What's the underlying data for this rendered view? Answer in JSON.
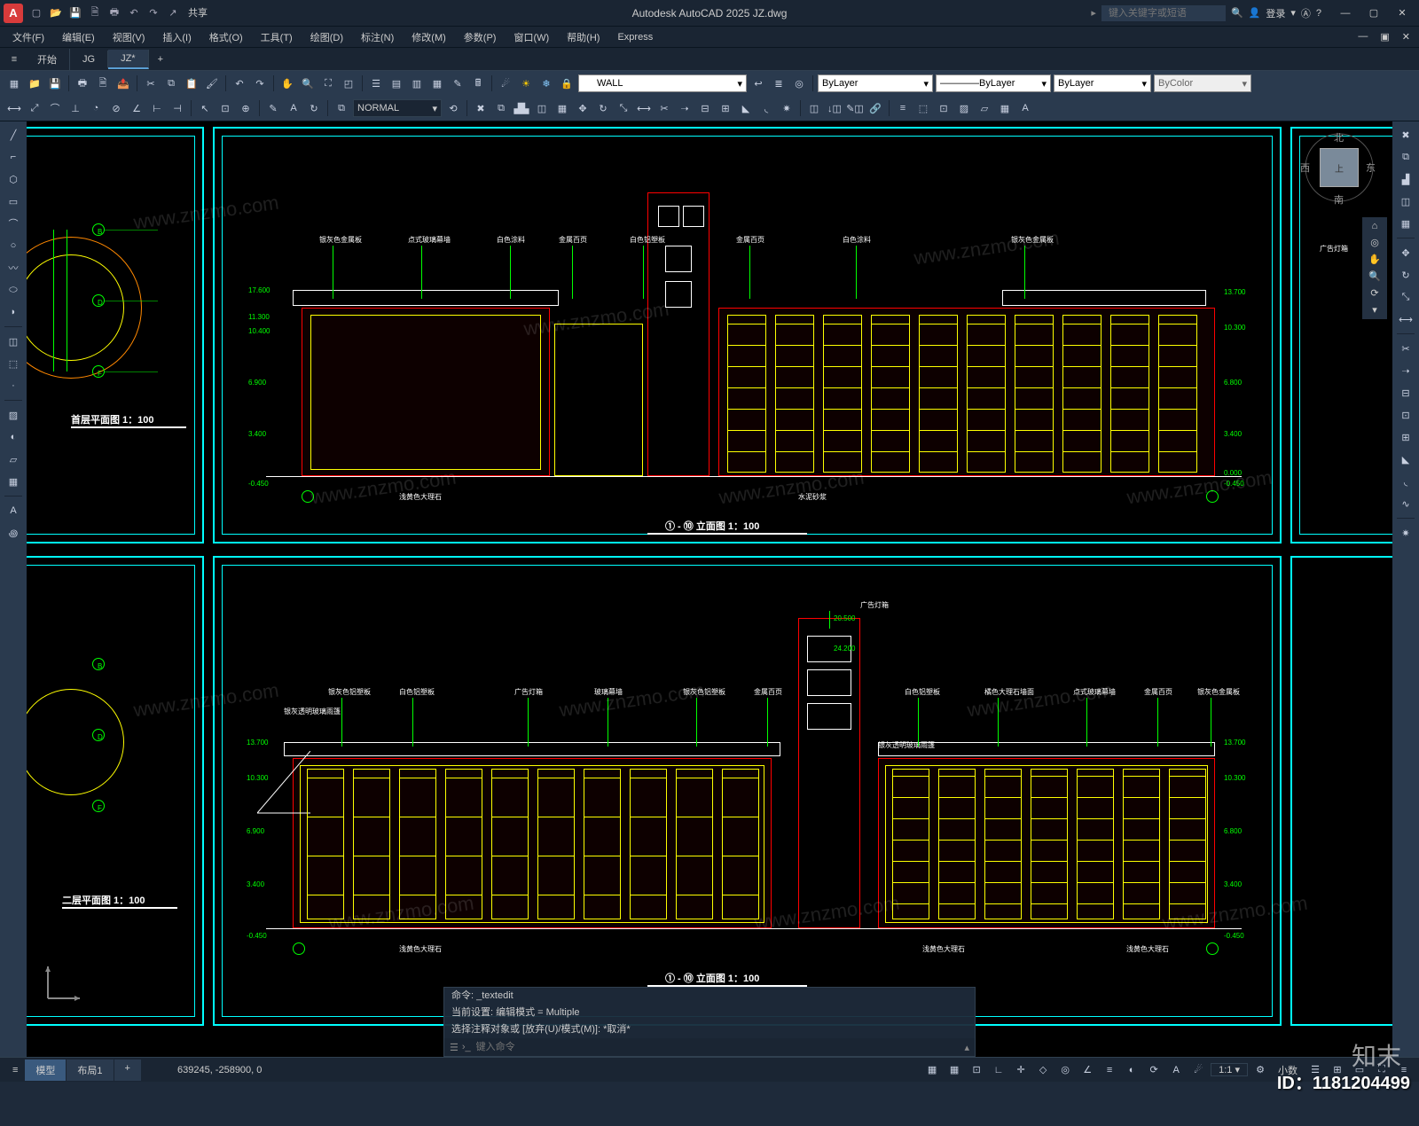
{
  "app": {
    "title": "Autodesk AutoCAD 2025   JZ.dwg",
    "logo_letter": "A",
    "share": "共享",
    "search_placeholder": "键入关键字或短语",
    "login": "登录"
  },
  "menus": [
    "文件(F)",
    "编辑(E)",
    "视图(V)",
    "插入(I)",
    "格式(O)",
    "工具(T)",
    "绘图(D)",
    "标注(N)",
    "修改(M)",
    "参数(P)",
    "窗口(W)",
    "帮助(H)",
    "Express"
  ],
  "doc_tabs": {
    "items": [
      "开始",
      "JG",
      "JZ*"
    ],
    "active": 2
  },
  "ribbon": {
    "layer_combo": "WALL",
    "style_combo": "NORMAL",
    "bylayer1": "ByLayer",
    "bylayer2": "ByLayer",
    "bylayer3": "ByLayer",
    "bycolor": "ByColor"
  },
  "viewcube": {
    "n": "北",
    "s": "南",
    "e": "东",
    "w": "西",
    "top": "上"
  },
  "drawing": {
    "colors": {
      "frame": "#00ffff",
      "dim": "#00ff00",
      "yellow": "#ffff00",
      "red": "#ff0000",
      "white": "#ffffff",
      "mag": "#ff00ff"
    },
    "sheet1_title": "首层平面图 1：100",
    "sheet2_title": "二层平面图 1：100",
    "elev1_title": "① - ⑩ 立面图 1：100",
    "elev2_title": "① - ⑩ 立面图 1：100",
    "annos_top": [
      "银灰色金属板",
      "点式玻璃幕墙",
      "白色涂料",
      "金属百页",
      "白色铝塑板",
      "金属百页",
      "白色涂料",
      "银灰色金属板"
    ],
    "annos_bot": [
      "浅黄色大理石",
      "水泥砂浆"
    ],
    "annos2_top": [
      "银灰色铝塑板",
      "白色铝塑板",
      "广告灯箱",
      "玻璃幕墙",
      "银灰色铝塑板",
      "金属百页",
      "白色铝塑板",
      "橘色大理石墙面",
      "点式玻璃幕墙",
      "金属百页",
      "银灰色金属板"
    ],
    "annos2_mid": [
      "银灰透明玻璃雨篷",
      "银灰透明玻璃雨篷"
    ],
    "annos2_bot": [
      "浅黄色大理石",
      "浅黄色大理石",
      "浅黄色大理石"
    ],
    "anno_ad": "广告灯箱",
    "elev_marks_l": [
      "17.600",
      "11.300",
      "10.400",
      "6.900",
      "3.400",
      "-0.450"
    ],
    "elev_marks_r": [
      "13.700",
      "10.300",
      "6.800",
      "3.400",
      "0.000",
      "-0.450"
    ],
    "elev2_marks_l": [
      "13.700",
      "10.300",
      "6.900",
      "3.400",
      "-0.450"
    ],
    "elev2_marks_r": [
      "20.500",
      "24.200",
      "13.700",
      "10.300",
      "6.800",
      "3.400",
      "-0.450"
    ],
    "grid_letters": [
      "B",
      "D",
      "F"
    ],
    "anno_side": "广告灯箱"
  },
  "cmd": {
    "hist1": "命令: _textedit",
    "hist2": "当前设置: 编辑模式 = Multiple",
    "hist3": "选择注释对象或 [放弃(U)/模式(M)]: *取消*",
    "prompt_placeholder": "键入命令"
  },
  "status": {
    "model_tabs": [
      "模型",
      "布局1"
    ],
    "coords": "639245, -258900, 0",
    "decimal": "小数"
  },
  "overlay": {
    "id": "ID：1181204499",
    "brand": "知末",
    "wm": "www.znzmo.com"
  }
}
